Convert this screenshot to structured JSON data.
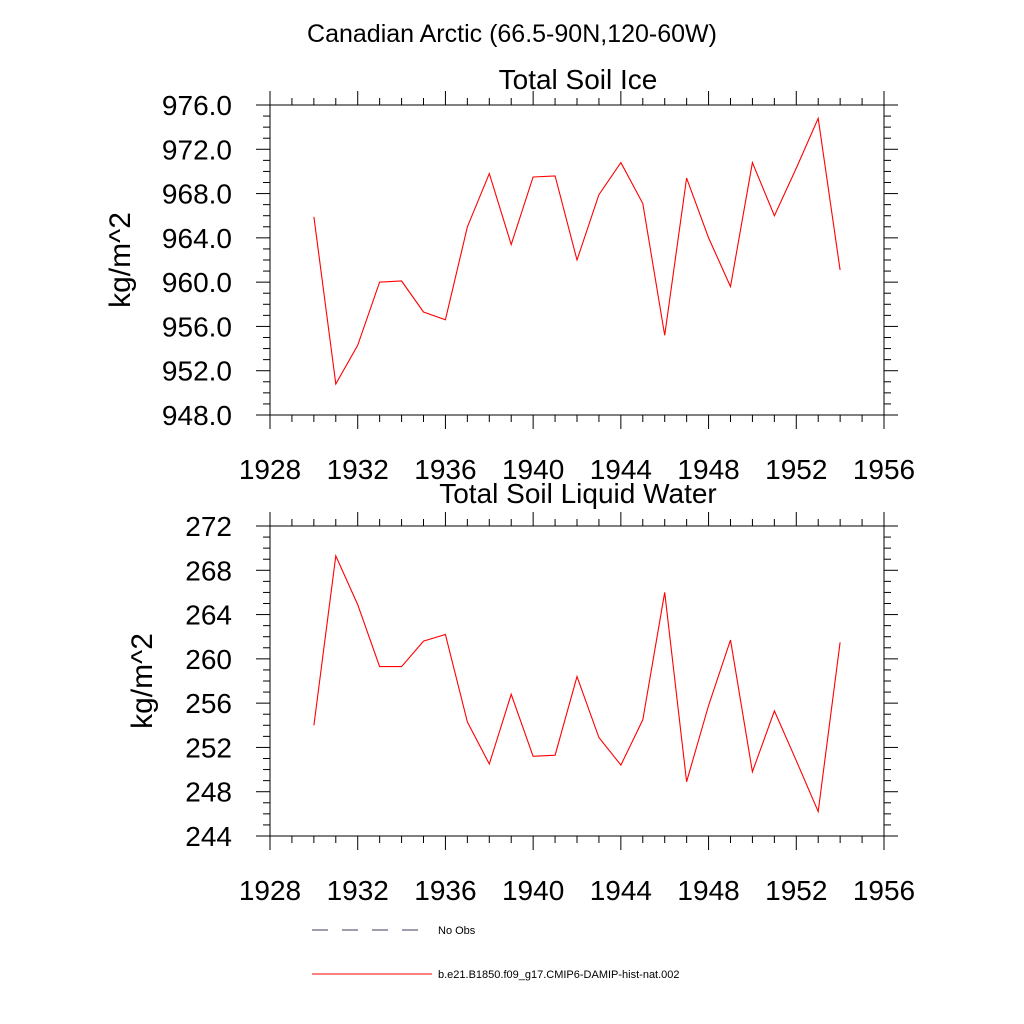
{
  "figure": {
    "title": "Canadian Arctic (66.5-90N,120-60W)"
  },
  "chart_data": [
    {
      "type": "line",
      "title": "Total Soil Ice",
      "ylabel": "kg/m^2",
      "xlabel": "",
      "xlim": [
        1928,
        1956
      ],
      "ylim": [
        948,
        976
      ],
      "xticks": [
        1928,
        1932,
        1936,
        1940,
        1944,
        1948,
        1952,
        1956
      ],
      "xtick_labels": [
        "1928",
        "1932",
        "1936",
        "1940",
        "1944",
        "1948",
        "1952",
        "1956"
      ],
      "yticks": [
        948,
        952,
        956,
        960,
        964,
        968,
        972,
        976
      ],
      "ytick_labels": [
        "948.0",
        "952.0",
        "956.0",
        "960.0",
        "964.0",
        "968.0",
        "972.0",
        "976.0"
      ],
      "grid": false,
      "series": [
        {
          "name": "b.e21.B1850.f09_g17.CMIP6-DAMIP-hist-nat.002",
          "color": "#ff0000",
          "x": [
            1930,
            1931,
            1932,
            1933,
            1934,
            1935,
            1936,
            1937,
            1938,
            1939,
            1940,
            1941,
            1942,
            1943,
            1944,
            1945,
            1946,
            1947,
            1948,
            1949,
            1950,
            1951,
            1952,
            1953,
            1954
          ],
          "y": [
            965.9,
            950.8,
            954.3,
            960.0,
            960.1,
            957.3,
            956.6,
            965.0,
            969.8,
            963.4,
            969.5,
            969.6,
            962.0,
            967.9,
            970.8,
            967.1,
            955.2,
            969.4,
            964.0,
            959.6,
            970.8,
            966.0,
            970.3,
            974.8,
            961.1
          ]
        }
      ]
    },
    {
      "type": "line",
      "title": "Total Soil Liquid Water",
      "ylabel": "kg/m^2",
      "xlabel": "",
      "xlim": [
        1928,
        1956
      ],
      "ylim": [
        244,
        272
      ],
      "xticks": [
        1928,
        1932,
        1936,
        1940,
        1944,
        1948,
        1952,
        1956
      ],
      "xtick_labels": [
        "1928",
        "1932",
        "1936",
        "1940",
        "1944",
        "1948",
        "1952",
        "1956"
      ],
      "yticks": [
        244,
        248,
        252,
        256,
        260,
        264,
        268,
        272
      ],
      "ytick_labels": [
        "244",
        "248",
        "252",
        "256",
        "260",
        "264",
        "268",
        "272"
      ],
      "grid": false,
      "series": [
        {
          "name": "b.e21.B1850.f09_g17.CMIP6-DAMIP-hist-nat.002",
          "color": "#ff0000",
          "x": [
            1930,
            1931,
            1932,
            1933,
            1934,
            1935,
            1936,
            1937,
            1938,
            1939,
            1940,
            1941,
            1942,
            1943,
            1944,
            1945,
            1946,
            1947,
            1948,
            1949,
            1950,
            1951,
            1952,
            1953,
            1954
          ],
          "y": [
            254.0,
            269.3,
            264.9,
            259.3,
            259.3,
            261.6,
            262.2,
            254.3,
            250.5,
            256.8,
            251.2,
            251.3,
            258.4,
            252.9,
            250.4,
            254.5,
            266.0,
            248.9,
            255.8,
            261.7,
            249.8,
            255.3,
            250.8,
            246.2,
            261.5
          ]
        }
      ]
    }
  ],
  "legend": {
    "placement": "bottom",
    "entries": [
      {
        "label": "No Obs",
        "style": "dashed",
        "color": "#3b3b5c"
      },
      {
        "label": "b.e21.B1850.f09_g17.CMIP6-DAMIP-hist-nat.002",
        "style": "solid",
        "color": "#ff0000"
      }
    ]
  }
}
